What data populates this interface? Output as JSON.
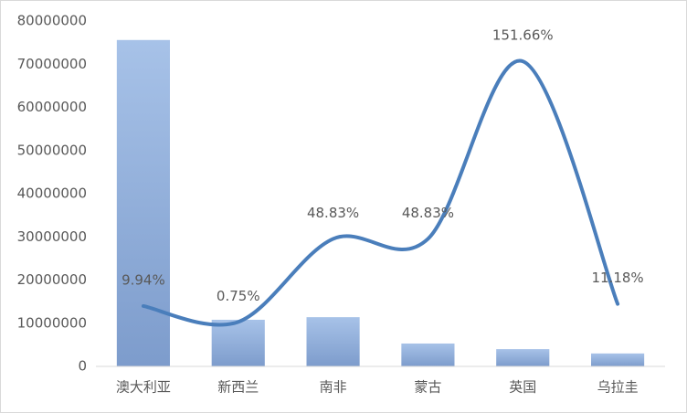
{
  "chart_data": {
    "type": "bar-line",
    "categories": [
      "澳大利亚",
      "新西兰",
      "南非",
      "蒙古",
      "英国",
      "乌拉圭"
    ],
    "series": [
      {
        "type": "bar",
        "color": "#8eaedc",
        "values": [
          75600000,
          10800000,
          11400000,
          5300000,
          4000000,
          3000000
        ]
      },
      {
        "type": "line",
        "axis": "y2",
        "color": "#4a7ebb",
        "values": [
          9.94,
          0.75,
          48.83,
          48.83,
          151.66,
          11.18
        ],
        "value_labels": [
          "9.94%",
          "0.75%",
          "48.83%",
          "48.83%",
          "151.66%",
          "11.18%"
        ]
      }
    ],
    "ylim": [
      0,
      80000000
    ],
    "yticks": [
      0,
      10000000,
      20000000,
      30000000,
      40000000,
      50000000,
      60000000,
      70000000,
      80000000
    ],
    "y2lim": [
      -25,
      175
    ],
    "grid": false
  }
}
